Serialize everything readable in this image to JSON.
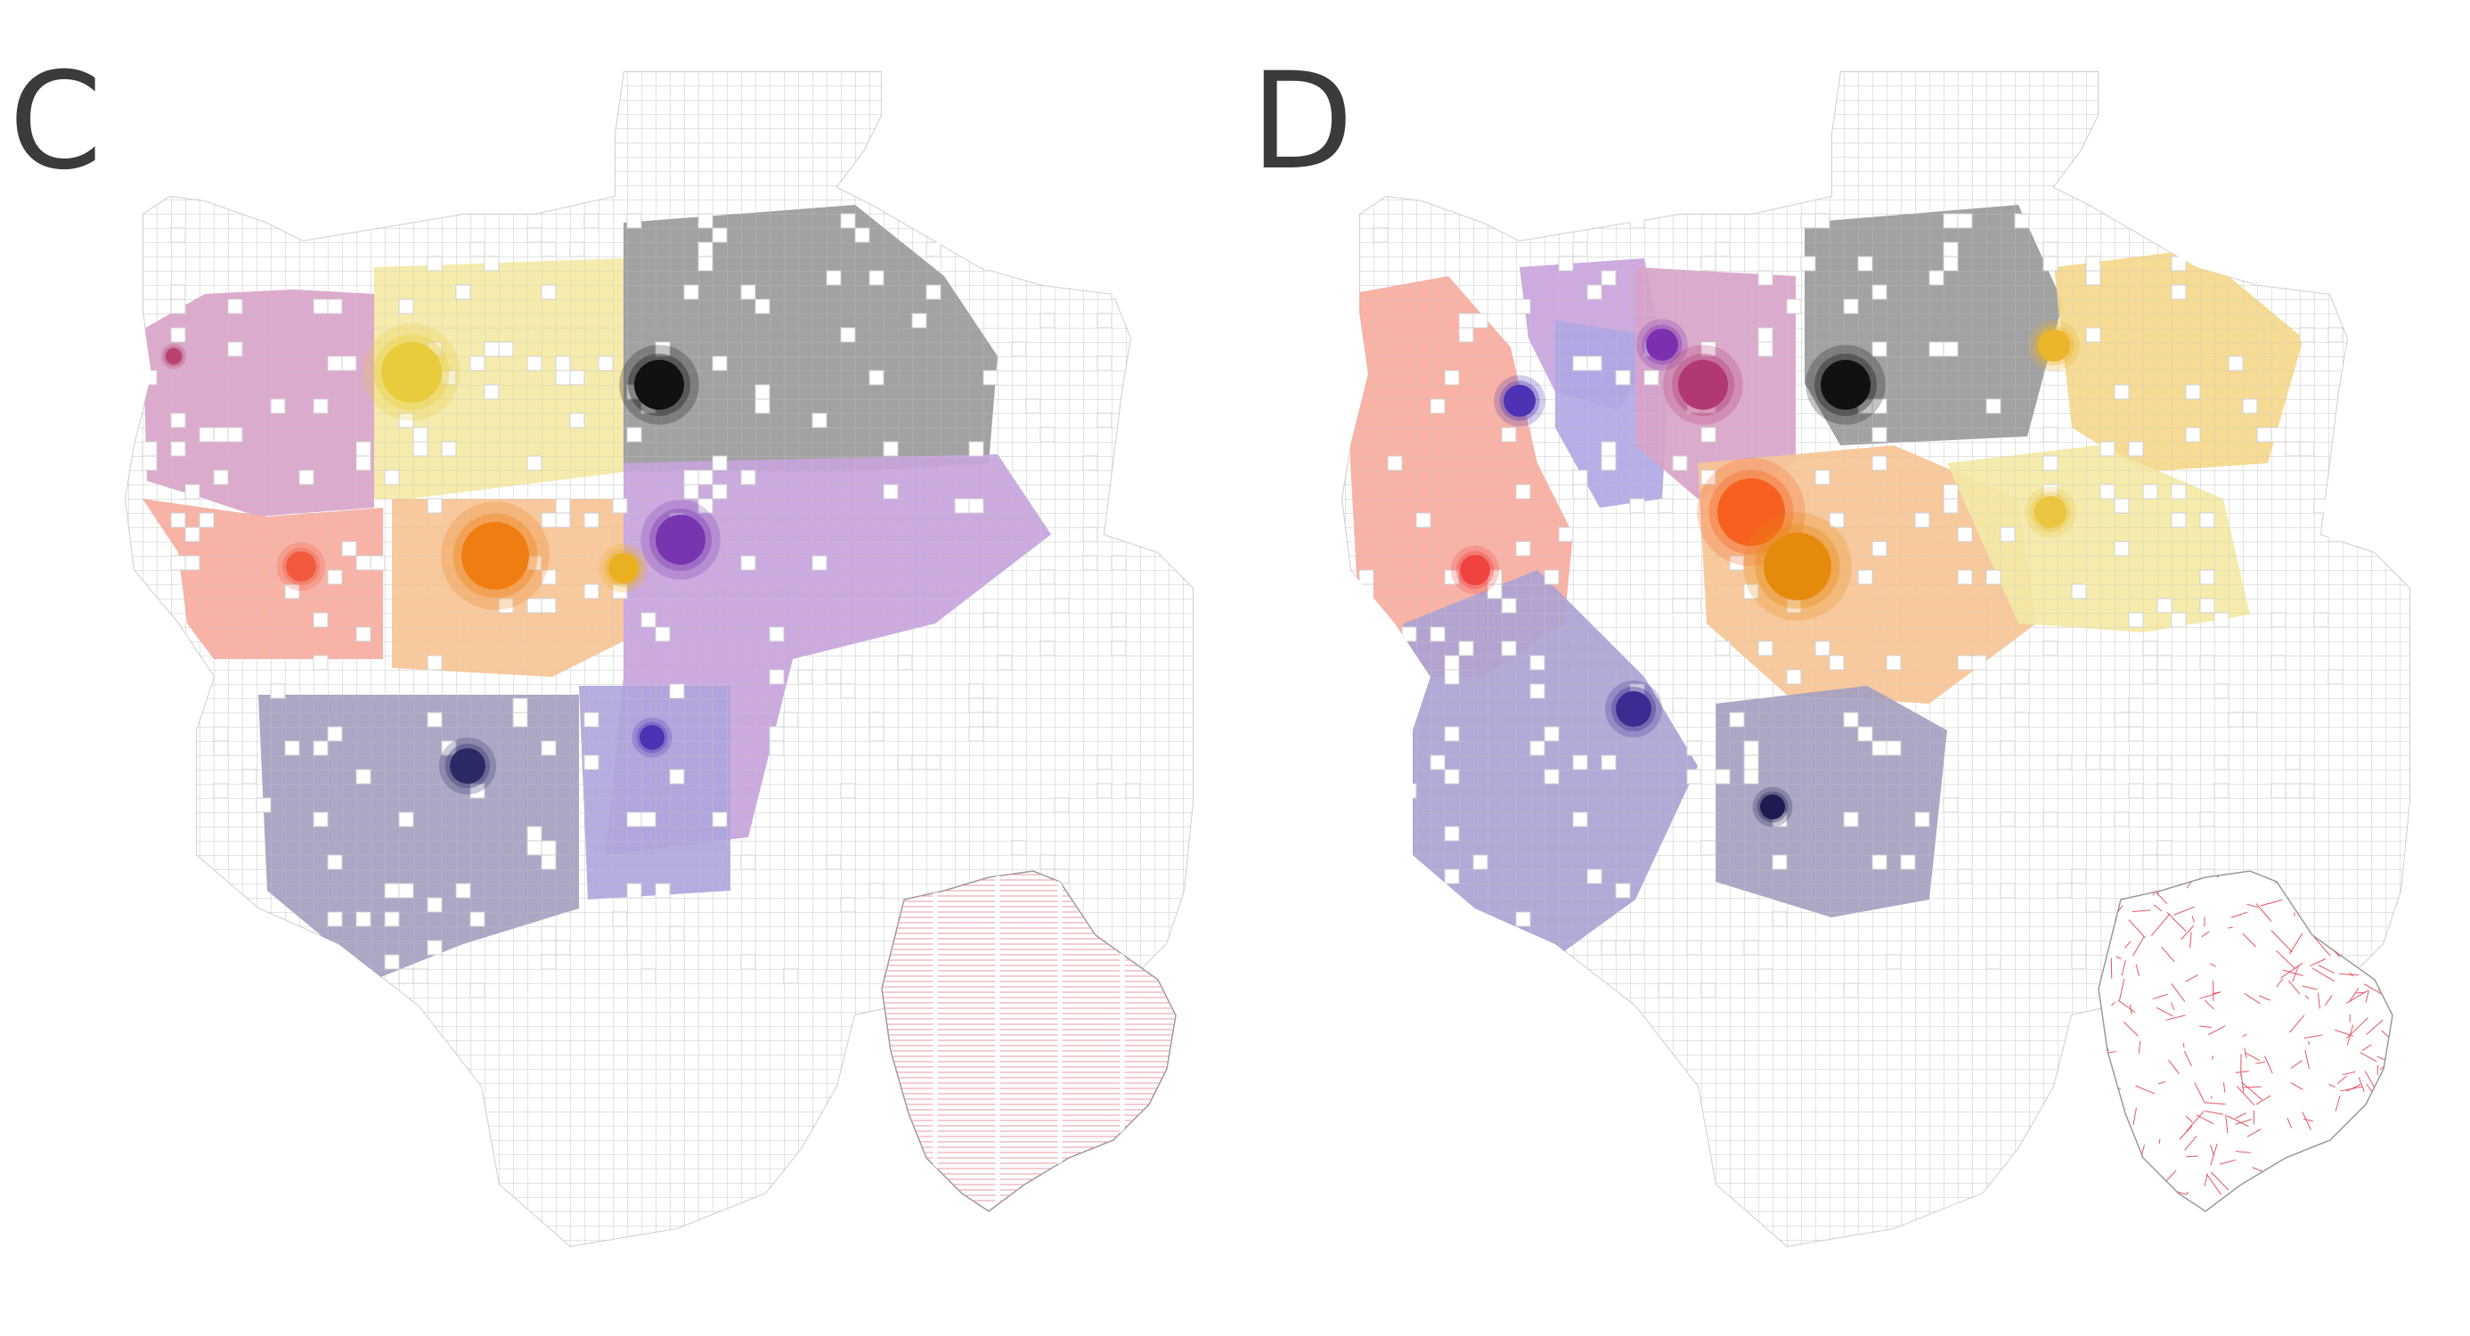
{
  "panels": [
    {
      "label": "C",
      "zones": [
        {
          "color": "#d9a3c9"
        },
        {
          "color": "#f3e9a5"
        },
        {
          "color": "#9a9a9a"
        },
        {
          "color": "#f7ab9e"
        },
        {
          "color": "#f7c494"
        },
        {
          "color": "#c7a3dc"
        },
        {
          "color": "#a4a0c0"
        },
        {
          "color": "#b0a5dc"
        }
      ],
      "centers": [
        {
          "color": "#b8436e"
        },
        {
          "color": "#e8cc3c"
        },
        {
          "color": "#111111"
        },
        {
          "color": "#f25a3e"
        },
        {
          "color": "#ef7d12"
        },
        {
          "color": "#ebb020"
        },
        {
          "color": "#7735b0"
        },
        {
          "color": "#2b2a66"
        },
        {
          "color": "#4d33b3"
        }
      ],
      "inset": {
        "color": "#e99aa4",
        "style": "parallel-lines"
      }
    },
    {
      "label": "D",
      "zones": [
        {
          "color": "#f7ab9e"
        },
        {
          "color": "#c9a3dc"
        },
        {
          "color": "#b0a7e4"
        },
        {
          "color": "#d9a3c9"
        },
        {
          "color": "#9a9a9a"
        },
        {
          "color": "#f5d88c"
        },
        {
          "color": "#f7c494"
        },
        {
          "color": "#f3e9a5"
        },
        {
          "color": "#ada2d4"
        },
        {
          "color": "#a4a0c0"
        }
      ],
      "centers": [
        {
          "color": "#7c30b0"
        },
        {
          "color": "#b13870"
        },
        {
          "color": "#4d33b3"
        },
        {
          "color": "#111111"
        },
        {
          "color": "#ebb52c"
        },
        {
          "color": "#f6611f"
        },
        {
          "color": "#e68a0e"
        },
        {
          "color": "#ebc440"
        },
        {
          "color": "#f0433f"
        },
        {
          "color": "#3a2c90"
        },
        {
          "color": "#1d1b50"
        }
      ],
      "inset": {
        "color": "#e35663",
        "style": "street-network"
      }
    }
  ]
}
